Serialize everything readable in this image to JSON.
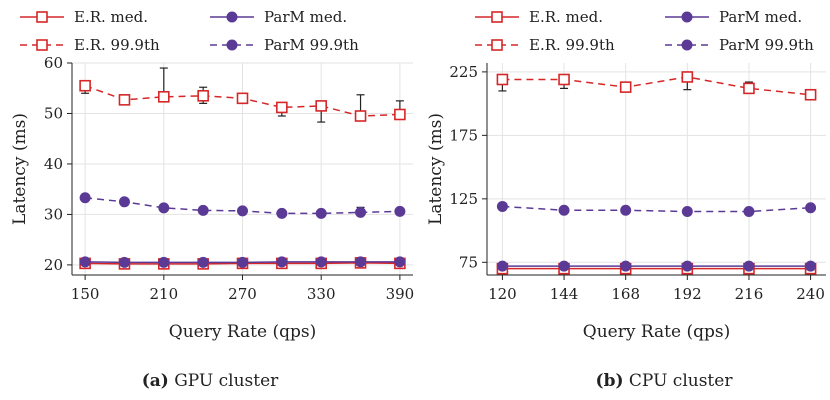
{
  "chart_data": [
    {
      "type": "line",
      "caption_prefix": "(a)",
      "caption_text": "GPU cluster",
      "xlabel": "Query Rate (qps)",
      "ylabel": "Latency (ms)",
      "x": [
        150,
        180,
        210,
        240,
        270,
        300,
        330,
        360,
        390
      ],
      "xticks": [
        150,
        210,
        270,
        330,
        390
      ],
      "yticks": [
        20,
        30,
        40,
        50,
        60
      ],
      "xlim": [
        140,
        400
      ],
      "ylim": [
        18,
        60
      ],
      "grid": true,
      "series": [
        {
          "name": "E.R. med.",
          "color": "#d62728",
          "dash": false,
          "marker": "square",
          "values": [
            20.3,
            20.2,
            20.2,
            20.2,
            20.3,
            20.3,
            20.3,
            20.4,
            20.3
          ],
          "err_low": [],
          "err_high": []
        },
        {
          "name": "ParM med.",
          "color": "#5b3a96",
          "dash": false,
          "marker": "circle",
          "values": [
            20.6,
            20.5,
            20.5,
            20.5,
            20.5,
            20.6,
            20.6,
            20.6,
            20.6
          ],
          "err_low": [],
          "err_high": []
        },
        {
          "name": "E.R. 99.9th",
          "color": "#d62728",
          "dash": true,
          "marker": "square",
          "values": [
            55.5,
            52.7,
            53.3,
            53.5,
            53.0,
            51.2,
            51.5,
            49.5,
            49.8
          ],
          "err_low": [
            54.0,
            52.7,
            53.3,
            52.0,
            52.2,
            49.5,
            48.3,
            49.5,
            49.5
          ],
          "err_high": [
            55.5,
            52.7,
            59.0,
            55.2,
            53.8,
            51.2,
            51.5,
            53.7,
            52.5
          ]
        },
        {
          "name": "ParM 99.9th",
          "color": "#5b3a96",
          "dash": true,
          "marker": "circle",
          "values": [
            33.3,
            32.5,
            31.3,
            30.8,
            30.7,
            30.2,
            30.2,
            30.4,
            30.6
          ],
          "err_low": [
            33.3,
            32.0,
            31.3,
            30.8,
            30.7,
            30.2,
            30.2,
            30.3,
            30.6
          ],
          "err_high": [
            33.3,
            32.5,
            31.3,
            30.8,
            30.7,
            30.2,
            30.2,
            31.4,
            30.6
          ]
        }
      ]
    },
    {
      "type": "line",
      "caption_prefix": "(b)",
      "caption_text": "CPU cluster",
      "xlabel": "Query Rate (qps)",
      "ylabel": "Latency (ms)",
      "x": [
        120,
        144,
        168,
        192,
        216,
        240
      ],
      "xticks": [
        120,
        144,
        168,
        192,
        216,
        240
      ],
      "yticks": [
        75,
        125,
        175,
        225
      ],
      "xlim": [
        114,
        246
      ],
      "ylim": [
        65,
        232
      ],
      "grid": true,
      "series": [
        {
          "name": "E.R. med.",
          "color": "#d62728",
          "dash": false,
          "marker": "square",
          "values": [
            70,
            70,
            70,
            70,
            70,
            70
          ],
          "err_low": [],
          "err_high": []
        },
        {
          "name": "ParM med.",
          "color": "#5b3a96",
          "dash": false,
          "marker": "circle",
          "values": [
            72,
            72,
            72,
            72,
            72,
            72
          ],
          "err_low": [],
          "err_high": []
        },
        {
          "name": "E.R. 99.9th",
          "color": "#d62728",
          "dash": true,
          "marker": "square",
          "values": [
            219,
            219,
            213,
            221,
            212,
            207
          ],
          "err_low": [
            210,
            212,
            213,
            211,
            211,
            205
          ],
          "err_high": [
            219,
            219,
            213,
            221,
            217,
            207
          ]
        },
        {
          "name": "ParM 99.9th",
          "color": "#5b3a96",
          "dash": true,
          "marker": "circle",
          "values": [
            119,
            116,
            116,
            115,
            115,
            118
          ],
          "err_low": [],
          "err_high": []
        }
      ]
    }
  ]
}
